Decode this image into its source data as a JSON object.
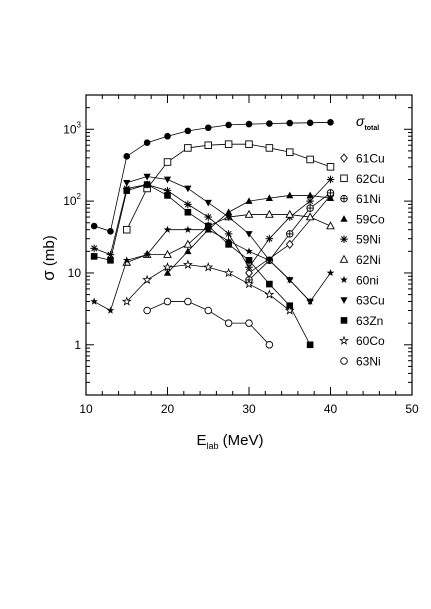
{
  "chart_data": {
    "type": "scatter",
    "xlabel_main": "E",
    "xlabel_sub": "lab",
    "xlabel_unit": " (MeV)",
    "ylabel_symbol": "σ",
    "ylabel_unit": "(mb)",
    "xlim": [
      10,
      50
    ],
    "ylim": [
      0.2,
      3000
    ],
    "yscale": "log",
    "xticks": [
      10,
      20,
      30,
      40,
      50
    ],
    "ytick_labels": [
      {
        "value": 1,
        "base": "1",
        "exp": ""
      },
      {
        "value": 10,
        "base": "10",
        "exp": ""
      },
      {
        "value": 100,
        "base": "10",
        "exp": "2"
      },
      {
        "value": 1000,
        "base": "10",
        "exp": "3"
      }
    ],
    "legend_position": "right",
    "legend_title_symbol": "σ",
    "legend_title_sub": "total",
    "series": [
      {
        "name": "total",
        "marker": "circle-filled",
        "in_legend": false,
        "x": [
          11,
          13,
          15,
          17.5,
          20,
          22.5,
          25,
          27.5,
          30,
          32.5,
          35,
          37.5,
          40
        ],
        "y": [
          45,
          38,
          420,
          650,
          800,
          950,
          1050,
          1150,
          1180,
          1200,
          1220,
          1230,
          1250
        ]
      },
      {
        "name": "61Cu",
        "marker": "diamond-open",
        "x": [
          30,
          35,
          40
        ],
        "y": [
          10,
          25,
          120
        ]
      },
      {
        "name": "62Cu",
        "marker": "square-open",
        "x": [
          15,
          17.5,
          20,
          22.5,
          25,
          27.5,
          30,
          32.5,
          35,
          37.5,
          40
        ],
        "y": [
          40,
          150,
          350,
          550,
          600,
          620,
          620,
          550,
          480,
          380,
          300
        ]
      },
      {
        "name": "61Ni",
        "marker": "circle-plus",
        "x": [
          30,
          32.5,
          35,
          37.5,
          40
        ],
        "y": [
          8,
          15,
          35,
          80,
          130
        ]
      },
      {
        "name": "59Co",
        "marker": "triangle-filled",
        "x": [
          20,
          22.5,
          25,
          27.5,
          30,
          32.5,
          35,
          37.5,
          40
        ],
        "y": [
          10,
          20,
          40,
          70,
          100,
          110,
          120,
          120,
          110
        ]
      },
      {
        "name": "59Ni",
        "marker": "asterisk",
        "x": [
          11,
          13,
          15,
          17.5,
          20,
          22.5,
          25,
          27.5,
          30,
          32.5,
          35,
          37.5,
          40
        ],
        "y": [
          22,
          18,
          150,
          170,
          140,
          90,
          60,
          35,
          12,
          30,
          60,
          100,
          200
        ]
      },
      {
        "name": "62Ni",
        "marker": "triangle-open",
        "x": [
          15,
          17.5,
          20,
          22.5,
          25,
          27.5,
          30,
          32.5,
          35,
          37.5,
          40
        ],
        "y": [
          14,
          18,
          18,
          25,
          45,
          60,
          65,
          65,
          65,
          60,
          45
        ]
      },
      {
        "name": "60ni",
        "marker": "star-filled",
        "x": [
          11,
          13,
          15,
          17.5,
          20,
          22.5,
          25,
          27.5,
          30,
          32.5,
          35,
          37.5,
          40
        ],
        "y": [
          4,
          3,
          15,
          18,
          40,
          40,
          40,
          28,
          20,
          15,
          8,
          4,
          10
        ]
      },
      {
        "name": "63Cu",
        "marker": "triangle-down-filled",
        "x": [
          15,
          17.5,
          20,
          22.5,
          25,
          27.5,
          30,
          32.5,
          35,
          37.5
        ],
        "y": [
          180,
          220,
          200,
          150,
          95,
          60,
          35,
          15,
          8,
          4
        ]
      },
      {
        "name": "63Zn",
        "marker": "square-filled",
        "x": [
          11,
          13,
          15,
          17.5,
          20,
          22.5,
          25,
          27.5,
          30,
          32.5,
          35,
          37.5
        ],
        "y": [
          17,
          15,
          140,
          170,
          120,
          70,
          45,
          25,
          15,
          7,
          3.5,
          1
        ]
      },
      {
        "name": "60Co",
        "marker": "star-open",
        "x": [
          15,
          17.5,
          20,
          22.5,
          25,
          27.5,
          30,
          32.5,
          35
        ],
        "y": [
          4,
          8,
          12,
          13,
          12,
          10,
          7,
          5,
          3
        ]
      },
      {
        "name": "63Ni",
        "marker": "circle-open",
        "x": [
          17.5,
          20,
          22.5,
          25,
          27.5,
          30,
          32.5
        ],
        "y": [
          3,
          4,
          4,
          3,
          2,
          2,
          1
        ]
      }
    ]
  }
}
